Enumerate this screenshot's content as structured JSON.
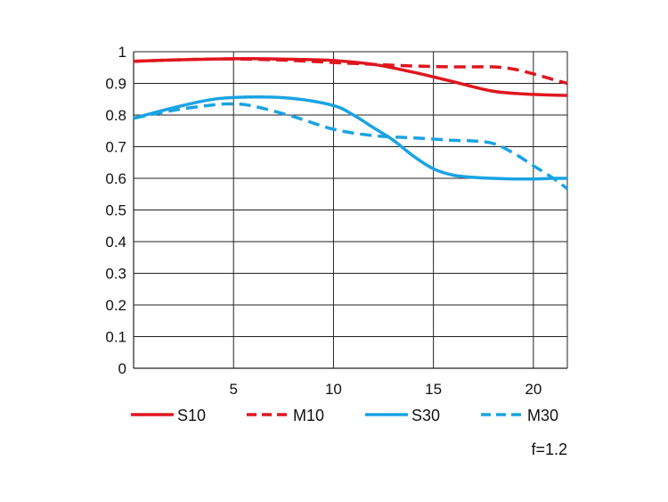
{
  "chart_data": {
    "type": "line",
    "xlim": [
      0,
      21.7
    ],
    "ylim": [
      0,
      1
    ],
    "x_ticks": [
      "5",
      "10",
      "15",
      "20"
    ],
    "y_ticks": [
      "0",
      "0.1",
      "0.2",
      "0.3",
      "0.4",
      "0.5",
      "0.6",
      "0.7",
      "0.8",
      "0.9",
      "1"
    ],
    "grid": true,
    "legend_position": "bottom",
    "annotation": "f=1.2",
    "series": [
      {
        "name": "S10",
        "color": "#e0161f",
        "style": "solid",
        "x": [
          0,
          2,
          4,
          6,
          8,
          10,
          12,
          14,
          16,
          18,
          20,
          21.7
        ],
        "y": [
          0.97,
          0.974,
          0.977,
          0.978,
          0.976,
          0.972,
          0.96,
          0.935,
          0.905,
          0.875,
          0.865,
          0.862
        ]
      },
      {
        "name": "M10",
        "color": "#e0161f",
        "style": "dashed",
        "x": [
          0,
          2,
          4,
          6,
          8,
          10,
          12,
          14,
          16,
          18,
          19,
          20,
          21,
          21.7
        ],
        "y": [
          0.97,
          0.974,
          0.977,
          0.976,
          0.972,
          0.966,
          0.96,
          0.955,
          0.952,
          0.952,
          0.945,
          0.93,
          0.912,
          0.9
        ]
      },
      {
        "name": "S30",
        "color": "#1aa3e3",
        "style": "solid",
        "x": [
          0,
          2,
          4,
          6,
          8,
          10,
          11,
          12,
          13,
          14,
          15,
          16,
          17,
          18,
          19,
          20,
          21,
          21.7
        ],
        "y": [
          0.79,
          0.823,
          0.85,
          0.857,
          0.852,
          0.83,
          0.8,
          0.76,
          0.72,
          0.67,
          0.63,
          0.61,
          0.603,
          0.6,
          0.598,
          0.598,
          0.6,
          0.6
        ]
      },
      {
        "name": "M30",
        "color": "#1aa3e3",
        "style": "dashed",
        "x": [
          0,
          2,
          4,
          5,
          6,
          8,
          10,
          12,
          14,
          16,
          17,
          18,
          19,
          20,
          21,
          21.7
        ],
        "y": [
          0.79,
          0.815,
          0.832,
          0.835,
          0.828,
          0.795,
          0.755,
          0.735,
          0.728,
          0.72,
          0.718,
          0.71,
          0.68,
          0.64,
          0.6,
          0.567
        ]
      }
    ]
  }
}
